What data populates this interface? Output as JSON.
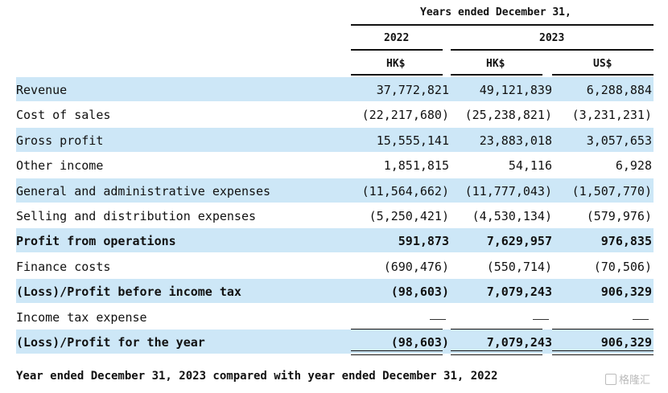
{
  "header": {
    "period": "Years ended December  31,",
    "year_2022": "2022",
    "year_2023": "2023",
    "cur1": "HK$",
    "cur2": "HK$",
    "cur3": "US$"
  },
  "rows": [
    {
      "label": "Revenue",
      "v1": "37,772,821",
      "v2": "49,121,839",
      "v3": "6,288,884",
      "shaded": true,
      "bold": false
    },
    {
      "label": "Cost of sales",
      "v1": "(22,217,680)",
      "v2": "(25,238,821)",
      "v3": "(3,231,231)",
      "shaded": false,
      "bold": false
    },
    {
      "label": "Gross profit",
      "v1": "15,555,141",
      "v2": "23,883,018",
      "v3": "3,057,653",
      "shaded": true,
      "bold": false
    },
    {
      "label": "Other income",
      "v1": "1,851,815",
      "v2": "54,116",
      "v3": "6,928",
      "shaded": false,
      "bold": false
    },
    {
      "label": "General and administrative expenses",
      "v1": "(11,564,662)",
      "v2": "(11,777,043)",
      "v3": "(1,507,770)",
      "shaded": true,
      "bold": false
    },
    {
      "label": "Selling and distribution expenses",
      "v1": "(5,250,421)",
      "v2": "(4,530,134)",
      "v3": "(579,976)",
      "shaded": false,
      "bold": false
    },
    {
      "label": "Profit from operations",
      "v1": "591,873",
      "v2": "7,629,957",
      "v3": "976,835",
      "shaded": true,
      "bold": true
    },
    {
      "label": "Finance costs",
      "v1": "(690,476)",
      "v2": "(550,714)",
      "v3": "(70,506)",
      "shaded": false,
      "bold": false
    },
    {
      "label": "(Loss)/Profit before income tax",
      "v1": "(98,603)",
      "v2": "7,079,243",
      "v3": "906,329",
      "shaded": true,
      "bold": true
    },
    {
      "label": "Income tax expense",
      "v1": "",
      "v2": "",
      "v3": "",
      "shaded": false,
      "bold": false
    },
    {
      "label": "(Loss)/Profit for the year",
      "v1": "(98,603)",
      "v2": "7,079,243",
      "v3": "906,329",
      "shaded": true,
      "bold": true
    }
  ],
  "footer": "Year ended December  31, 2023 compared with year ended December  31, 2022",
  "watermark": "格隆汇",
  "colors": {
    "shade": "#cde7f7",
    "text": "#111111"
  }
}
